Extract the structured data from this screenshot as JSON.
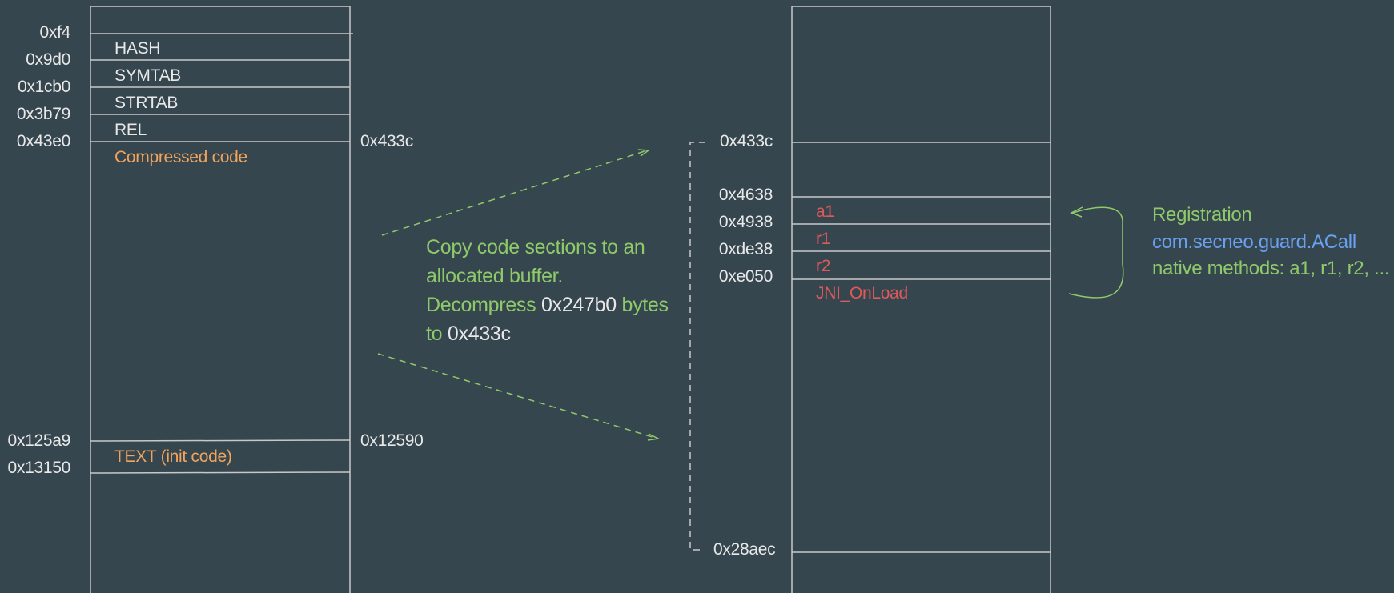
{
  "left_block": {
    "sections": [
      {
        "addr": "0xf4",
        "label": "HASH",
        "highlight": false
      },
      {
        "addr": "0x9d0",
        "label": "SYMTAB",
        "highlight": false
      },
      {
        "addr": "0x1cb0",
        "label": "STRTAB",
        "highlight": false
      },
      {
        "addr": "0x3b79",
        "label": "REL",
        "highlight": false
      },
      {
        "addr": "0x43e0",
        "label": "Compressed code",
        "highlight": true
      },
      {
        "addr": "0x125a9",
        "label": "TEXT (init code)",
        "highlight": true
      },
      {
        "addr": "0x13150",
        "label": "",
        "highlight": false
      }
    ],
    "right_addrs": [
      "0x433c",
      "0x12590"
    ]
  },
  "annotation": {
    "line1": "Copy code sections to an",
    "line2": "allocated buffer.",
    "line3_a": "Decompress",
    "line3_b": "0x247b0",
    "line3_c": "bytes",
    "line4_a": "to",
    "line4_b": "0x433c"
  },
  "right_block": {
    "range_start": "0x433c",
    "range_end": "0x28aec",
    "entries": [
      {
        "addr": "0x4638",
        "label": "a1"
      },
      {
        "addr": "0x4938",
        "label": "r1"
      },
      {
        "addr": "0xde38",
        "label": "r2"
      },
      {
        "addr": "0xe050",
        "label": "JNI_OnLoad"
      }
    ]
  },
  "registration": {
    "title": "Registration",
    "class_name": "com.secneo.guard.ACall",
    "methods": "native methods: a1, r1, r2, ..."
  },
  "colors": {
    "background": "#36464f",
    "lines": "#c8c8c8",
    "green": "#8fca6a",
    "orange": "#f0a45c",
    "red": "#e05a5a",
    "blue": "#6aa0f0"
  }
}
